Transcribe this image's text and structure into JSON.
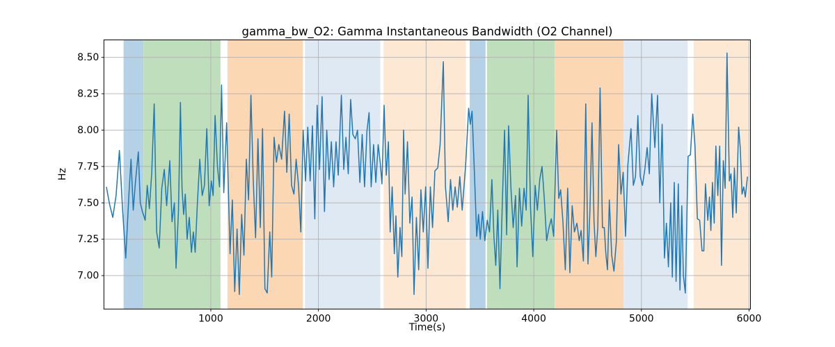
{
  "figure": {
    "title": "gamma_bw_O2: Gamma Instantaneous Bandwidth (O2 Channel)",
    "xlabel": "Time(s)",
    "ylabel": "Hz",
    "background": "#ffffff"
  },
  "chart_data": {
    "type": "line",
    "title": "gamma_bw_O2: Gamma Instantaneous Bandwidth (O2 Channel)",
    "xlabel": "Time(s)",
    "ylabel": "Hz",
    "xlim": [
      7,
      6013
    ],
    "ylim": [
      6.77,
      8.62
    ],
    "grid": true,
    "grid_color": "#b0b0b0",
    "line_color": "#1f77b4",
    "line_width": 1.5,
    "legend": "none",
    "xticks": [
      {
        "v": 1000,
        "label": "1000"
      },
      {
        "v": 2000,
        "label": "2000"
      },
      {
        "v": 3000,
        "label": "3000"
      },
      {
        "v": 4000,
        "label": "4000"
      },
      {
        "v": 5000,
        "label": "5000"
      },
      {
        "v": 6000,
        "label": "6000"
      }
    ],
    "yticks": [
      {
        "v": 7.0,
        "label": "7.00"
      },
      {
        "v": 7.25,
        "label": "7.25"
      },
      {
        "v": 7.5,
        "label": "7.50"
      },
      {
        "v": 7.75,
        "label": "7.75"
      },
      {
        "v": 8.0,
        "label": "8.00"
      },
      {
        "v": 8.25,
        "label": "8.25"
      },
      {
        "v": 8.5,
        "label": "8.50"
      }
    ],
    "span_colors": {
      "blue": "#b4d1e5",
      "green": "#bfdfbc",
      "orange": "#fbd7b3",
      "lightblue": "#dfe9f3",
      "lightorange": "#fde8d4"
    },
    "spans": [
      {
        "start": 190,
        "end": 375,
        "color": "blue"
      },
      {
        "start": 375,
        "end": 1090,
        "color": "green"
      },
      {
        "start": 1155,
        "end": 1855,
        "color": "orange"
      },
      {
        "start": 1875,
        "end": 2575,
        "color": "lightblue"
      },
      {
        "start": 2605,
        "end": 3370,
        "color": "lightorange"
      },
      {
        "start": 3405,
        "end": 3552,
        "color": "blue"
      },
      {
        "start": 3565,
        "end": 4195,
        "color": "green"
      },
      {
        "start": 4195,
        "end": 4835,
        "color": "orange"
      },
      {
        "start": 4835,
        "end": 5430,
        "color": "lightblue"
      },
      {
        "start": 5485,
        "end": 5997,
        "color": "lightorange"
      }
    ],
    "series": [
      {
        "name": "gamma_bw_O2",
        "points": [
          [
            30,
            7.61
          ],
          [
            60,
            7.49
          ],
          [
            90,
            7.4
          ],
          [
            120,
            7.55
          ],
          [
            151,
            7.86
          ],
          [
            180,
            7.46
          ],
          [
            210,
            7.12
          ],
          [
            240,
            7.56
          ],
          [
            259,
            7.8
          ],
          [
            280,
            7.45
          ],
          [
            300,
            7.64
          ],
          [
            327,
            7.85
          ],
          [
            345,
            7.5
          ],
          [
            365,
            7.44
          ],
          [
            390,
            7.38
          ],
          [
            410,
            7.62
          ],
          [
            430,
            7.46
          ],
          [
            452,
            7.71
          ],
          [
            474,
            8.18
          ],
          [
            497,
            7.3
          ],
          [
            521,
            7.19
          ],
          [
            545,
            7.6
          ],
          [
            568,
            7.73
          ],
          [
            590,
            7.48
          ],
          [
            619,
            7.79
          ],
          [
            640,
            7.37
          ],
          [
            662,
            7.5
          ],
          [
            677,
            7.05
          ],
          [
            700,
            7.45
          ],
          [
            718,
            8.19
          ],
          [
            733,
            7.6
          ],
          [
            748,
            7.42
          ],
          [
            763,
            7.56
          ],
          [
            780,
            7.25
          ],
          [
            800,
            7.4
          ],
          [
            820,
            7.16
          ],
          [
            838,
            7.3
          ],
          [
            855,
            7.16
          ],
          [
            875,
            7.49
          ],
          [
            898,
            7.8
          ],
          [
            920,
            7.55
          ],
          [
            941,
            7.62
          ],
          [
            963,
            8.01
          ],
          [
            985,
            7.48
          ],
          [
            1005,
            7.65
          ],
          [
            1022,
            7.55
          ],
          [
            1040,
            8.1
          ],
          [
            1062,
            7.75
          ],
          [
            1081,
            7.61
          ],
          [
            1100,
            8.31
          ],
          [
            1121,
            7.57
          ],
          [
            1147,
            8.05
          ],
          [
            1179,
            7.15
          ],
          [
            1200,
            7.52
          ],
          [
            1222,
            6.89
          ],
          [
            1244,
            7.32
          ],
          [
            1265,
            6.87
          ],
          [
            1287,
            7.42
          ],
          [
            1308,
            7.14
          ],
          [
            1330,
            7.8
          ],
          [
            1351,
            7.52
          ],
          [
            1373,
            8.24
          ],
          [
            1395,
            7.65
          ],
          [
            1416,
            7.26
          ],
          [
            1438,
            7.94
          ],
          [
            1460,
            7.33
          ],
          [
            1481,
            8.01
          ],
          [
            1503,
            6.91
          ],
          [
            1524,
            6.88
          ],
          [
            1548,
            7.3
          ],
          [
            1566,
            6.99
          ],
          [
            1588,
            7.95
          ],
          [
            1610,
            7.78
          ],
          [
            1632,
            7.9
          ],
          [
            1658,
            7.8
          ],
          [
            1685,
            8.13
          ],
          [
            1706,
            7.71
          ],
          [
            1728,
            8.11
          ],
          [
            1750,
            7.62
          ],
          [
            1772,
            7.56
          ],
          [
            1793,
            7.8
          ],
          [
            1815,
            7.62
          ],
          [
            1836,
            7.3
          ],
          [
            1858,
            8.0
          ],
          [
            1880,
            7.65
          ],
          [
            1901,
            8.02
          ],
          [
            1923,
            7.65
          ],
          [
            1944,
            8.03
          ],
          [
            1966,
            7.39
          ],
          [
            1988,
            8.17
          ],
          [
            2010,
            7.73
          ],
          [
            2034,
            8.23
          ],
          [
            2056,
            7.44
          ],
          [
            2077,
            8.0
          ],
          [
            2099,
            7.66
          ],
          [
            2120,
            7.92
          ],
          [
            2141,
            7.61
          ],
          [
            2163,
            7.92
          ],
          [
            2184,
            7.69
          ],
          [
            2213,
            8.24
          ],
          [
            2235,
            7.73
          ],
          [
            2256,
            7.95
          ],
          [
            2277,
            7.7
          ],
          [
            2299,
            8.21
          ],
          [
            2320,
            7.97
          ],
          [
            2342,
            7.94
          ],
          [
            2363,
            8.0
          ],
          [
            2385,
            7.64
          ],
          [
            2406,
            7.97
          ],
          [
            2428,
            7.61
          ],
          [
            2450,
            7.99
          ],
          [
            2470,
            8.12
          ],
          [
            2490,
            7.61
          ],
          [
            2512,
            7.9
          ],
          [
            2533,
            7.64
          ],
          [
            2555,
            7.9
          ],
          [
            2575,
            7.77
          ],
          [
            2590,
            7.63
          ],
          [
            2610,
            8.17
          ],
          [
            2630,
            7.69
          ],
          [
            2650,
            7.92
          ],
          [
            2666,
            7.3
          ],
          [
            2685,
            7.61
          ],
          [
            2705,
            7.15
          ],
          [
            2720,
            7.41
          ],
          [
            2737,
            6.99
          ],
          [
            2758,
            7.33
          ],
          [
            2775,
            7.13
          ],
          [
            2791,
            8.0
          ],
          [
            2805,
            7.56
          ],
          [
            2827,
            7.92
          ],
          [
            2849,
            7.36
          ],
          [
            2870,
            7.54
          ],
          [
            2888,
            6.87
          ],
          [
            2910,
            7.4
          ],
          [
            2931,
            7.04
          ],
          [
            2952,
            7.59
          ],
          [
            2974,
            7.3
          ],
          [
            2996,
            7.61
          ],
          [
            3017,
            7.05
          ],
          [
            3040,
            7.61
          ],
          [
            3060,
            7.33
          ],
          [
            3082,
            7.72
          ],
          [
            3108,
            7.74
          ],
          [
            3130,
            7.9
          ],
          [
            3160,
            8.47
          ],
          [
            3180,
            7.61
          ],
          [
            3205,
            7.37
          ],
          [
            3227,
            7.66
          ],
          [
            3248,
            7.45
          ],
          [
            3270,
            7.61
          ],
          [
            3290,
            7.47
          ],
          [
            3313,
            7.68
          ],
          [
            3335,
            7.45
          ],
          [
            3367,
            7.75
          ],
          [
            3395,
            8.15
          ],
          [
            3410,
            8.04
          ],
          [
            3427,
            8.13
          ],
          [
            3450,
            7.68
          ],
          [
            3470,
            7.27
          ],
          [
            3487,
            7.42
          ],
          [
            3503,
            7.25
          ],
          [
            3524,
            7.44
          ],
          [
            3546,
            7.24
          ],
          [
            3568,
            7.38
          ],
          [
            3589,
            7.3
          ],
          [
            3611,
            7.66
          ],
          [
            3630,
            7.27
          ],
          [
            3647,
            7.07
          ],
          [
            3666,
            7.45
          ],
          [
            3686,
            6.91
          ],
          [
            3708,
            7.5
          ],
          [
            3729,
            8.0
          ],
          [
            3748,
            7.28
          ],
          [
            3766,
            8.03
          ],
          [
            3788,
            7.6
          ],
          [
            3809,
            7.33
          ],
          [
            3831,
            7.55
          ],
          [
            3845,
            7.06
          ],
          [
            3867,
            7.6
          ],
          [
            3888,
            7.34
          ],
          [
            3910,
            7.6
          ],
          [
            3930,
            7.45
          ],
          [
            3948,
            8.24
          ],
          [
            3970,
            7.47
          ],
          [
            3991,
            7.13
          ],
          [
            4013,
            7.62
          ],
          [
            4034,
            7.45
          ],
          [
            4056,
            7.66
          ],
          [
            4077,
            7.75
          ],
          [
            4098,
            7.53
          ],
          [
            4120,
            7.24
          ],
          [
            4142,
            7.33
          ],
          [
            4163,
            7.39
          ],
          [
            4185,
            7.27
          ],
          [
            4213,
            8.0
          ],
          [
            4232,
            7.53
          ],
          [
            4250,
            7.59
          ],
          [
            4271,
            7.37
          ],
          [
            4293,
            7.04
          ],
          [
            4315,
            7.6
          ],
          [
            4336,
            7.02
          ],
          [
            4357,
            7.48
          ],
          [
            4378,
            7.3
          ],
          [
            4401,
            7.36
          ],
          [
            4422,
            7.24
          ],
          [
            4440,
            7.31
          ],
          [
            4461,
            7.1
          ],
          [
            4483,
            8.18
          ],
          [
            4504,
            7.08
          ],
          [
            4522,
            7.45
          ],
          [
            4541,
            8.05
          ],
          [
            4560,
            7.37
          ],
          [
            4577,
            7.13
          ],
          [
            4595,
            7.33
          ],
          [
            4616,
            8.29
          ],
          [
            4638,
            7.33
          ],
          [
            4655,
            7.33
          ],
          [
            4670,
            7.15
          ],
          [
            4685,
            7.04
          ],
          [
            4702,
            7.52
          ],
          [
            4724,
            7.14
          ],
          [
            4745,
            7.03
          ],
          [
            4767,
            7.23
          ],
          [
            4788,
            7.9
          ],
          [
            4810,
            7.56
          ],
          [
            4831,
            7.71
          ],
          [
            4853,
            7.27
          ],
          [
            4874,
            7.76
          ],
          [
            4903,
            8.01
          ],
          [
            4925,
            7.62
          ],
          [
            4945,
            7.68
          ],
          [
            4967,
            8.1
          ],
          [
            4989,
            7.68
          ],
          [
            5010,
            7.62
          ],
          [
            5032,
            7.73
          ],
          [
            5053,
            7.88
          ],
          [
            5074,
            7.7
          ],
          [
            5096,
            8.25
          ],
          [
            5125,
            7.88
          ],
          [
            5150,
            8.24
          ],
          [
            5171,
            7.5
          ],
          [
            5193,
            8.04
          ],
          [
            5214,
            7.12
          ],
          [
            5232,
            7.36
          ],
          [
            5251,
            7.06
          ],
          [
            5272,
            7.5
          ],
          [
            5287,
            6.99
          ],
          [
            5305,
            7.64
          ],
          [
            5322,
            6.96
          ],
          [
            5343,
            7.63
          ],
          [
            5358,
            6.9
          ],
          [
            5375,
            7.48
          ],
          [
            5390,
            7.0
          ],
          [
            5408,
            6.88
          ],
          [
            5434,
            7.82
          ],
          [
            5455,
            7.83
          ],
          [
            5477,
            8.11
          ],
          [
            5498,
            7.89
          ],
          [
            5520,
            7.39
          ],
          [
            5541,
            7.38
          ],
          [
            5563,
            7.17
          ],
          [
            5580,
            7.17
          ],
          [
            5595,
            7.63
          ],
          [
            5617,
            7.38
          ],
          [
            5632,
            7.54
          ],
          [
            5645,
            7.31
          ],
          [
            5660,
            7.64
          ],
          [
            5676,
            7.36
          ],
          [
            5692,
            7.89
          ],
          [
            5710,
            7.55
          ],
          [
            5727,
            7.89
          ],
          [
            5744,
            7.07
          ],
          [
            5761,
            7.79
          ],
          [
            5778,
            7.6
          ],
          [
            5795,
            8.53
          ],
          [
            5817,
            7.65
          ],
          [
            5832,
            7.7
          ],
          [
            5849,
            7.4
          ],
          [
            5864,
            7.74
          ],
          [
            5881,
            7.43
          ],
          [
            5903,
            8.02
          ],
          [
            5918,
            7.88
          ],
          [
            5935,
            7.56
          ],
          [
            5950,
            7.61
          ],
          [
            5965,
            7.54
          ],
          [
            5985,
            7.68
          ]
        ]
      }
    ]
  }
}
